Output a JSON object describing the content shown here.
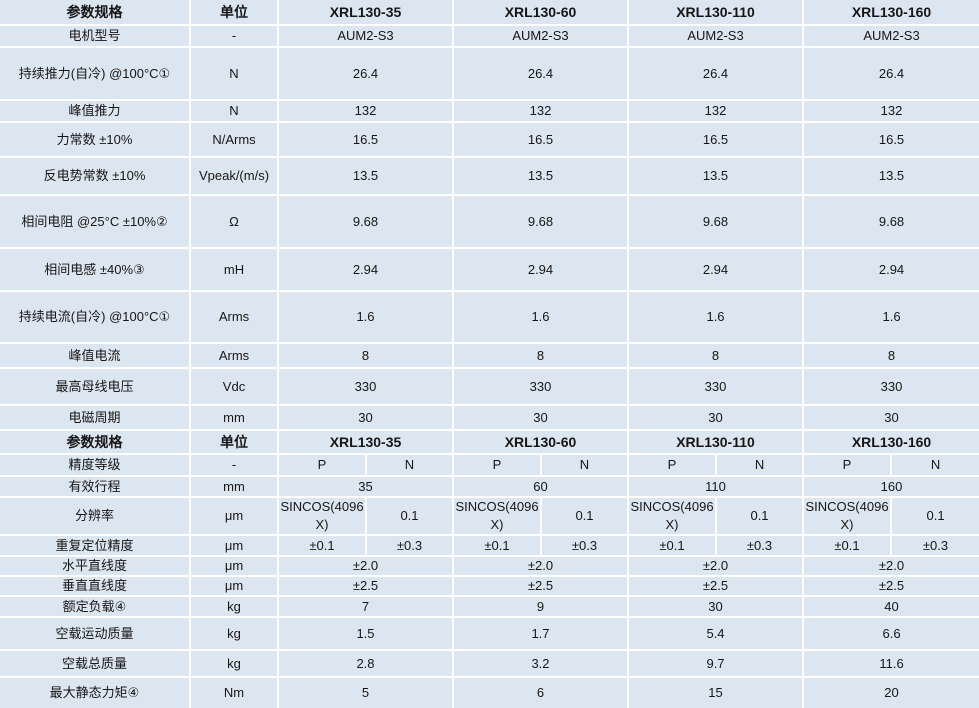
{
  "motor_specs": {
    "header": {
      "param": "参数规格",
      "unit": "单位",
      "models": [
        "XRL130-35",
        "XRL130-60",
        "XRL130-110",
        "XRL130-160"
      ]
    },
    "rows": [
      {
        "param": "电机型号",
        "unit": "-",
        "values": [
          "AUM2-S3",
          "AUM2-S3",
          "AUM2-S3",
          "AUM2-S3"
        ]
      },
      {
        "param": "持续推力(自冷) @100°C①",
        "unit": "N",
        "values": [
          "26.4",
          "26.4",
          "26.4",
          "26.4"
        ]
      },
      {
        "param": "峰值推力",
        "unit": "N",
        "values": [
          "132",
          "132",
          "132",
          "132"
        ]
      },
      {
        "param": "力常数 ±10%",
        "unit": "N/Arms",
        "values": [
          "16.5",
          "16.5",
          "16.5",
          "16.5"
        ]
      },
      {
        "param": "反电势常数 ±10%",
        "unit": "Vpeak/(m/s)",
        "values": [
          "13.5",
          "13.5",
          "13.5",
          "13.5"
        ]
      },
      {
        "param": "相间电阻 @25°C ±10%②",
        "unit": "Ω",
        "values": [
          "9.68",
          "9.68",
          "9.68",
          "9.68"
        ]
      },
      {
        "param": "相间电感 ±40%③",
        "unit": "mH",
        "values": [
          "2.94",
          "2.94",
          "2.94",
          "2.94"
        ]
      },
      {
        "param": "持续电流(自冷) @100°C①",
        "unit": "Arms",
        "values": [
          "1.6",
          "1.6",
          "1.6",
          "1.6"
        ]
      },
      {
        "param": "峰值电流",
        "unit": "Arms",
        "values": [
          "8",
          "8",
          "8",
          "8"
        ]
      },
      {
        "param": "最高母线电压",
        "unit": "Vdc",
        "values": [
          "330",
          "330",
          "330",
          "330"
        ]
      },
      {
        "param": "电磁周期",
        "unit": "mm",
        "values": [
          "30",
          "30",
          "30",
          "30"
        ]
      }
    ]
  },
  "stage_specs": {
    "header": {
      "param": "参数规格",
      "unit": "单位",
      "models": [
        "XRL130-35",
        "XRL130-60",
        "XRL130-110",
        "XRL130-160"
      ]
    },
    "rows": [
      {
        "param": "精度等级",
        "unit": "-",
        "values": [
          [
            "P",
            "N"
          ],
          [
            "P",
            "N"
          ],
          [
            "P",
            "N"
          ],
          [
            "P",
            "N"
          ]
        ]
      },
      {
        "param": "有效行程",
        "unit": "mm",
        "values": [
          "35",
          "60",
          "110",
          "160"
        ]
      },
      {
        "param": "分辨率",
        "unit": "μm",
        "values": [
          [
            "SINCOS(4096X)",
            "0.1"
          ],
          [
            "SINCOS(4096X)",
            "0.1"
          ],
          [
            "SINCOS(4096X)",
            "0.1"
          ],
          [
            "SINCOS(4096X)",
            "0.1"
          ]
        ]
      },
      {
        "param": "重复定位精度",
        "unit": "μm",
        "values": [
          [
            "±0.1",
            "±0.3"
          ],
          [
            "±0.1",
            "±0.3"
          ],
          [
            "±0.1",
            "±0.3"
          ],
          [
            "±0.1",
            "±0.3"
          ]
        ]
      },
      {
        "param": "水平直线度",
        "unit": "μm",
        "values": [
          "±2.0",
          "±2.0",
          "±2.0",
          "±2.0"
        ]
      },
      {
        "param": "垂直直线度",
        "unit": "μm",
        "values": [
          "±2.5",
          "±2.5",
          "±2.5",
          "±2.5"
        ]
      },
      {
        "param": "额定负载④",
        "unit": "kg",
        "values": [
          "7",
          "9",
          "30",
          "40"
        ]
      },
      {
        "param": "空载运动质量",
        "unit": "kg",
        "values": [
          "1.5",
          "1.7",
          "5.4",
          "6.6"
        ]
      },
      {
        "param": "空载总质量",
        "unit": "kg",
        "values": [
          "2.8",
          "3.2",
          "9.7",
          "11.6"
        ]
      },
      {
        "param": "最大静态力矩④",
        "unit": "Nm",
        "values": [
          "5",
          "6",
          "15",
          "20"
        ]
      }
    ]
  }
}
